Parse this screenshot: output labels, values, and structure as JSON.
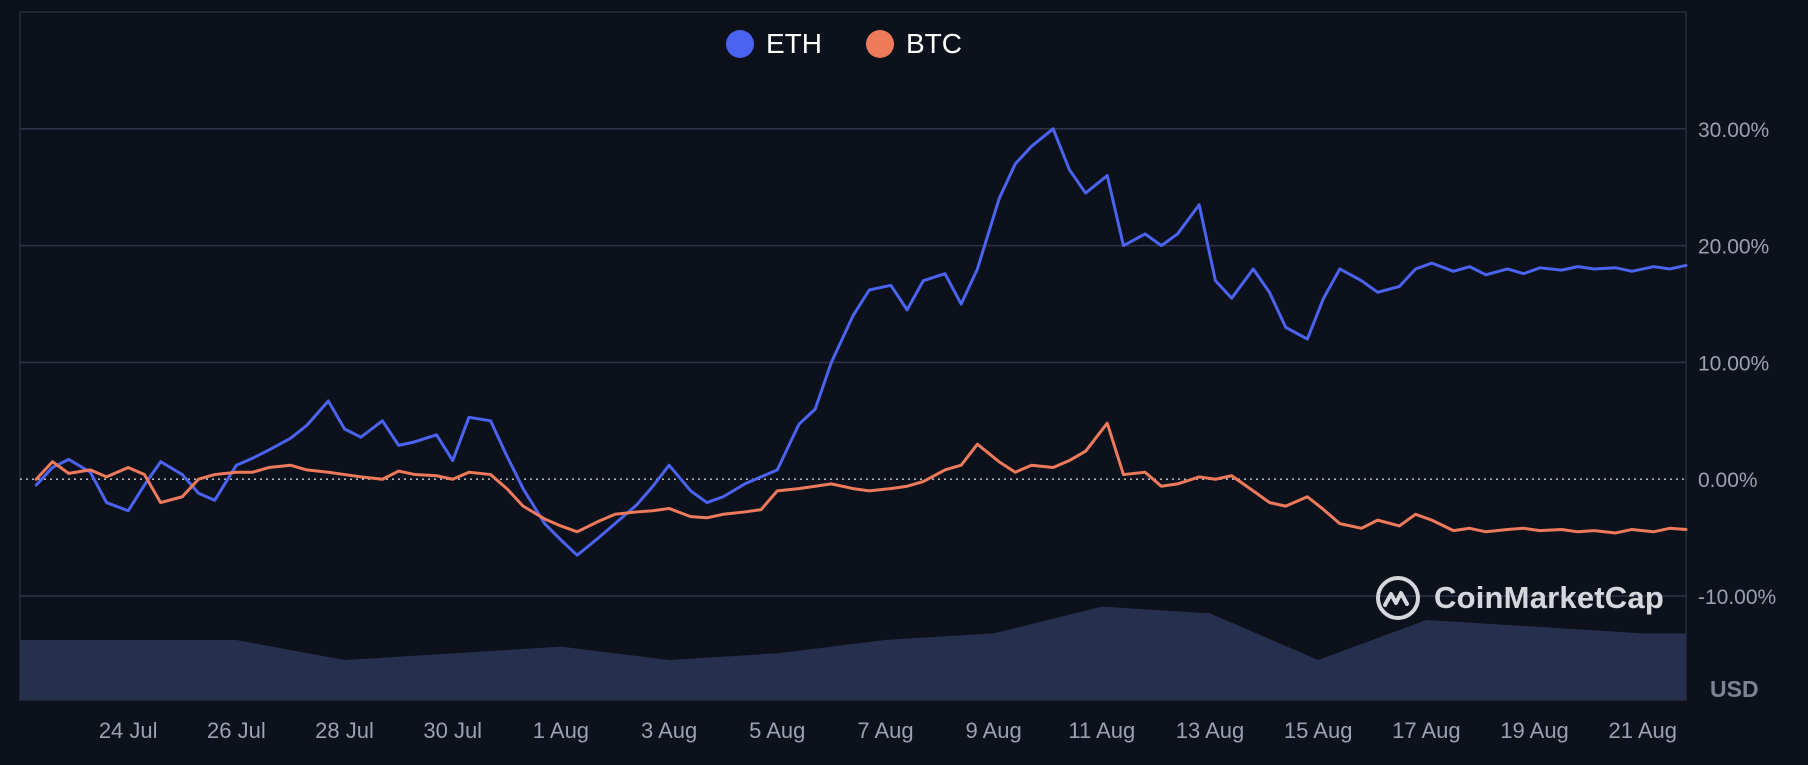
{
  "legend": {
    "items": [
      {
        "label": "ETH",
        "color": "#4a63f0"
      },
      {
        "label": "BTC",
        "color": "#ee7a5c"
      }
    ]
  },
  "watermark": {
    "text": "CoinMarketCap",
    "icon": "coinmarketcap-logo-icon"
  },
  "currency_label": "USD",
  "chart_data": {
    "type": "line",
    "y_ticks": [
      "30.00%",
      "20.00%",
      "10.00%",
      "0.00%",
      "-10.00%"
    ],
    "y_tick_values": [
      30,
      20,
      10,
      0,
      -10
    ],
    "x_ticks": [
      "24 Jul",
      "26 Jul",
      "28 Jul",
      "30 Jul",
      "1 Aug",
      "3 Aug",
      "5 Aug",
      "7 Aug",
      "9 Aug",
      "11 Aug",
      "13 Aug",
      "15 Aug",
      "17 Aug",
      "19 Aug",
      "21 Aug"
    ],
    "x_range": [
      "22 Jul",
      "22 Aug"
    ],
    "ylim": [
      -18.9,
      40.0
    ],
    "zero_line": "dotted",
    "grid": "horizontal",
    "legend_placement": "top-center",
    "series": [
      {
        "name": "ETH",
        "color": "#4a63f0",
        "x": [
          22.3,
          22.6,
          22.9,
          23.3,
          23.6,
          24.0,
          24.3,
          24.6,
          25.0,
          25.3,
          25.6,
          26.0,
          26.3,
          26.6,
          27.0,
          27.3,
          27.7,
          28.0,
          28.3,
          28.7,
          29.0,
          29.3,
          29.7,
          30.0,
          30.3,
          30.7,
          31.0,
          31.3,
          31.7,
          32.0,
          32.3,
          32.7,
          33.0,
          33.4,
          33.7,
          34.0,
          34.4,
          34.7,
          35.0,
          35.4,
          35.7,
          36.0,
          36.4,
          36.7,
          37.0,
          37.4,
          37.7,
          38.1,
          38.4,
          38.7,
          39.1,
          39.4,
          39.7,
          40.1,
          40.4,
          40.7,
          41.1,
          41.4,
          41.7,
          42.1,
          42.4,
          42.8,
          43.1,
          43.4,
          43.8,
          44.1,
          44.4,
          44.8,
          45.1,
          45.4,
          45.8,
          46.1,
          46.4,
          46.8,
          47.1,
          47.5,
          47.8,
          48.1,
          48.5,
          48.8,
          49.1,
          49.5,
          49.8,
          50.1,
          50.5,
          50.8,
          51.1,
          51.5,
          51.8,
          52.2,
          52.5,
          52.8
        ],
        "values": [
          -0.5,
          1.0,
          1.7,
          0.6,
          -2.0,
          -2.7,
          -0.5,
          1.5,
          0.4,
          -1.2,
          -1.8,
          1.2,
          1.8,
          2.5,
          3.5,
          4.6,
          6.7,
          4.3,
          3.6,
          5.0,
          2.9,
          3.2,
          3.8,
          1.6,
          5.3,
          5.0,
          2.0,
          -0.8,
          -3.8,
          -5.2,
          -6.5,
          -5.0,
          -3.8,
          -2.2,
          -0.6,
          1.2,
          -1.0,
          -2.0,
          -1.5,
          -0.4,
          0.2,
          0.8,
          4.7,
          6.0,
          10.0,
          14.0,
          16.2,
          16.6,
          14.5,
          17.0,
          17.6,
          15.0,
          18.0,
          24.0,
          27.0,
          28.5,
          30.0,
          26.5,
          24.5,
          26.0,
          20.0,
          21.0,
          20.0,
          21.0,
          23.5,
          17.0,
          15.5,
          18.0,
          16.0,
          13.0,
          12.0,
          15.5,
          18.0,
          17.0,
          16.0,
          16.5,
          18.0,
          18.5,
          17.8,
          18.2,
          17.5,
          18.0,
          17.6,
          18.1,
          17.9,
          18.2,
          18.0,
          18.1,
          17.8,
          18.2,
          18.0,
          18.3
        ],
        "visible_x_end": 52.8
      },
      {
        "name": "BTC",
        "color": "#ee7a5c",
        "x": [
          22.3,
          22.6,
          22.9,
          23.3,
          23.6,
          24.0,
          24.3,
          24.6,
          25.0,
          25.3,
          25.6,
          26.0,
          26.3,
          26.6,
          27.0,
          27.3,
          27.7,
          28.0,
          28.3,
          28.7,
          29.0,
          29.3,
          29.7,
          30.0,
          30.3,
          30.7,
          31.0,
          31.3,
          31.7,
          32.0,
          32.3,
          32.7,
          33.0,
          33.4,
          33.7,
          34.0,
          34.4,
          34.7,
          35.0,
          35.4,
          35.7,
          36.0,
          36.4,
          36.7,
          37.0,
          37.4,
          37.7,
          38.1,
          38.4,
          38.7,
          39.1,
          39.4,
          39.7,
          40.1,
          40.4,
          40.7,
          41.1,
          41.4,
          41.7,
          42.1,
          42.4,
          42.8,
          43.1,
          43.4,
          43.8,
          44.1,
          44.4,
          44.8,
          45.1,
          45.4,
          45.8,
          46.1,
          46.4,
          46.8,
          47.1,
          47.5,
          47.8,
          48.1,
          48.5,
          48.8,
          49.1,
          49.5,
          49.8,
          50.1,
          50.5,
          50.8,
          51.1,
          51.5,
          51.8,
          52.2,
          52.5,
          52.8
        ],
        "values": [
          0.0,
          1.5,
          0.5,
          0.8,
          0.2,
          1.0,
          0.4,
          -2.0,
          -1.5,
          0.0,
          0.4,
          0.6,
          0.6,
          1.0,
          1.2,
          0.8,
          0.6,
          0.4,
          0.2,
          0.0,
          0.7,
          0.4,
          0.3,
          0.0,
          0.6,
          0.4,
          -0.8,
          -2.3,
          -3.4,
          -4.0,
          -4.5,
          -3.6,
          -3.0,
          -2.8,
          -2.7,
          -2.5,
          -3.2,
          -3.3,
          -3.0,
          -2.8,
          -2.6,
          -1.0,
          -0.8,
          -0.6,
          -0.4,
          -0.8,
          -1.0,
          -0.8,
          -0.6,
          -0.2,
          0.8,
          1.2,
          3.0,
          1.5,
          0.6,
          1.2,
          1.0,
          1.6,
          2.4,
          4.8,
          0.4,
          0.6,
          -0.6,
          -0.4,
          0.2,
          0.0,
          0.3,
          -1.0,
          -2.0,
          -2.3,
          -1.5,
          -2.6,
          -3.8,
          -4.2,
          -3.5,
          -4.0,
          -3.0,
          -3.5,
          -4.4,
          -4.2,
          -4.5,
          -4.3,
          -4.2,
          -4.4,
          -4.3,
          -4.5,
          -4.4,
          -4.6,
          -4.3,
          -4.5,
          -4.2,
          -4.3
        ],
        "visible_x_end": 52.8
      }
    ],
    "volume": {
      "x": [
        22.0,
        24.0,
        26.0,
        28.0,
        30.0,
        32.0,
        34.0,
        36.0,
        38.0,
        40.0,
        42.0,
        44.0,
        46.0,
        48.0,
        50.0,
        52.0,
        52.8
      ],
      "values": [
        0.9,
        0.9,
        0.9,
        0.6,
        0.7,
        0.8,
        0.6,
        0.7,
        0.9,
        1.0,
        1.4,
        1.3,
        0.6,
        1.2,
        1.1,
        1.0,
        1.0
      ]
    }
  }
}
